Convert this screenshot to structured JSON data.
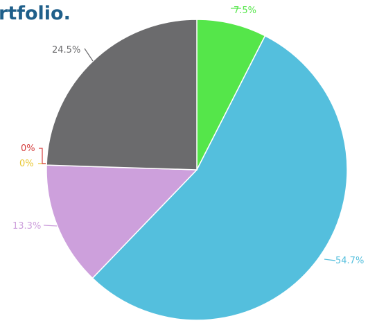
{
  "chart_data": {
    "type": "pie",
    "title": "rtfolio.",
    "start_angle_deg": 0,
    "direction": "clockwise",
    "slices": [
      {
        "label": "7.5%",
        "value": 7.5,
        "color": "#55e64a"
      },
      {
        "label": "54.7%",
        "value": 54.7,
        "color": "#54bfdd"
      },
      {
        "label": "13.3%",
        "value": 13.3,
        "color": "#cda0dc"
      },
      {
        "label": "0%",
        "value": 0,
        "color": "#f0d040"
      },
      {
        "label": "0%",
        "value": 0,
        "color": "#d43c3c"
      },
      {
        "label": "24.5%",
        "value": 24.5,
        "color": "#6b6b6d"
      }
    ]
  }
}
